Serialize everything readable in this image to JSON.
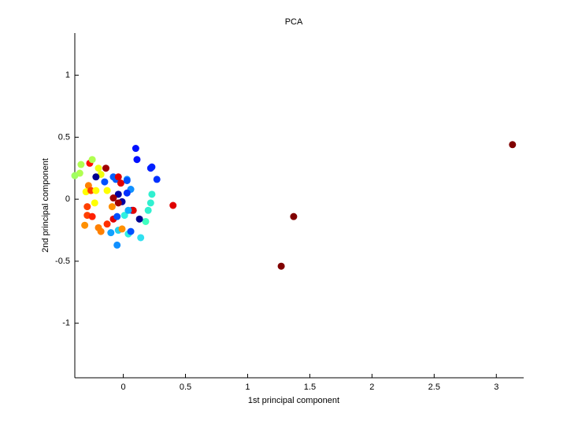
{
  "chart_data": {
    "type": "scatter",
    "title": "PCA",
    "x_label": "1st principal component",
    "y_label": "2nd principal component",
    "xlim": [
      -0.39,
      3.22
    ],
    "ylim": [
      -1.44,
      1.34
    ],
    "xticks": [
      0,
      0.5,
      1,
      1.5,
      2,
      2.5,
      3
    ],
    "yticks": [
      -1,
      -0.5,
      0,
      0.5,
      1
    ],
    "series": [
      {
        "x": [
          3.13,
          1.37,
          1.27,
          0.4,
          0.1,
          0.11,
          0.23,
          0.22,
          0.27,
          0.03,
          0.06,
          0.23,
          0.22,
          0.2,
          0.18,
          0.14,
          0.13,
          0.07,
          0.03,
          -0.04,
          -0.01,
          -0.06,
          -0.08,
          -0.04,
          -0.02,
          -0.08,
          -0.04,
          0.08,
          -0.08,
          -0.13,
          -0.2,
          -0.18,
          -0.1,
          -0.04,
          -0.01,
          0.04,
          0.06,
          -0.05,
          -0.14,
          -0.27,
          -0.25,
          -0.34,
          -0.35,
          -0.39,
          -0.2,
          -0.18,
          -0.22,
          -0.15,
          -0.28,
          -0.3,
          -0.26,
          -0.22,
          -0.13,
          -0.23,
          -0.29,
          -0.29,
          -0.25,
          -0.31,
          0.01,
          0.04,
          -0.09,
          -0.05,
          0.03
        ],
        "values": [
          0.44,
          -0.14,
          -0.54,
          -0.05,
          0.41,
          0.32,
          0.26,
          0.25,
          0.16,
          0.16,
          0.08,
          0.04,
          -0.03,
          -0.09,
          -0.18,
          -0.31,
          -0.16,
          -0.09,
          0.05,
          0.04,
          -0.02,
          0.16,
          0.18,
          0.18,
          0.13,
          0.01,
          -0.03,
          -0.09,
          -0.16,
          -0.2,
          -0.23,
          -0.26,
          -0.27,
          -0.25,
          -0.24,
          -0.28,
          -0.26,
          -0.37,
          0.25,
          0.29,
          0.32,
          0.28,
          0.21,
          0.19,
          0.25,
          0.2,
          0.18,
          0.14,
          0.11,
          0.06,
          0.07,
          0.07,
          0.07,
          -0.03,
          -0.06,
          -0.13,
          -0.14,
          -0.21,
          -0.13,
          -0.09,
          -0.06,
          -0.14,
          0.15
        ],
        "colors": [
          "#800000",
          "#800000",
          "#800000",
          "#e00000",
          "#0010ff",
          "#0010ff",
          "#0020ff",
          "#0020ff",
          "#0030ff",
          "#1090ff",
          "#1090ff",
          "#30f0d0",
          "#30f0d0",
          "#30f0d0",
          "#40ffc0",
          "#30e0f0",
          "#000090",
          "#0030ff",
          "#0030ff",
          "#0000a0",
          "#0000a0",
          "#0060ff",
          "#0060ff",
          "#e00000",
          "#e00000",
          "#a00000",
          "#a00000",
          "#e00000",
          "#e00000",
          "#ff3000",
          "#ff8000",
          "#ff8000",
          "#10a0ff",
          "#20d0f0",
          "#ff9000",
          "#30f0e0",
          "#0050ff",
          "#1090ff",
          "#a00000",
          "#ff1000",
          "#b0ff50",
          "#b0ff50",
          "#b0ff50",
          "#a0ff60",
          "#f0ff10",
          "#f0ff10",
          "#000090",
          "#0050ff",
          "#ff8000",
          "#ffff00",
          "#ff4000",
          "#ffff00",
          "#ffff00",
          "#ffff00",
          "#ff4000",
          "#ff4000",
          "#ff2000",
          "#ff9000",
          "#30f0e0",
          "#10b0ff",
          "#ff9000",
          "#0050ff",
          "#0050ff"
        ]
      }
    ]
  }
}
